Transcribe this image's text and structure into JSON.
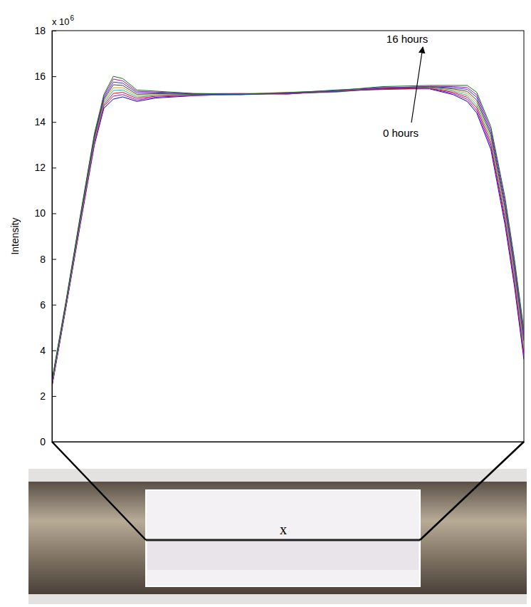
{
  "chart_data": {
    "type": "line",
    "y_label": "Intensity",
    "y_exponent": {
      "base": "x 10",
      "power": "6"
    },
    "annotations": [
      {
        "text": "16 hours"
      },
      {
        "text": "0 hours"
      }
    ],
    "x": [
      0,
      3,
      6,
      9,
      11,
      13,
      15,
      18,
      22,
      30,
      40,
      50,
      60,
      70,
      80,
      85,
      88,
      90,
      93,
      96,
      98,
      100
    ],
    "xlim": [
      0,
      100
    ],
    "ylim": [
      0,
      18
    ],
    "yticks": [
      0,
      2,
      4,
      6,
      8,
      10,
      12,
      14,
      16,
      18
    ],
    "grid": false,
    "tick_labels": "y",
    "series": [
      {
        "color": "#0000ff",
        "values": [
          2.4,
          5.9,
          9.5,
          13,
          14.6,
          15,
          15.1,
          14.9,
          15.05,
          15.15,
          15.22,
          15.25,
          15.35,
          15.45,
          15.45,
          15.2,
          14.9,
          14.4,
          12.8,
          9.5,
          6.8,
          3.6
        ]
      },
      {
        "color": "#bf00bf",
        "values": [
          2.44,
          5.94,
          9.55,
          13.06,
          14.68,
          15.13,
          15.2,
          14.96,
          15.09,
          15.16,
          15.2,
          15.28,
          15.32,
          15.5,
          15.47,
          15.25,
          14.99,
          14.51,
          12.93,
          9.65,
          6.95,
          3.76
        ]
      },
      {
        "color": "#ff0000",
        "values": [
          2.48,
          5.98,
          9.6,
          13.13,
          14.75,
          15.25,
          15.3,
          15.03,
          15.13,
          15.18,
          15.24,
          15.22,
          15.38,
          15.42,
          15.48,
          15.3,
          15.08,
          14.63,
          13.05,
          9.8,
          7.1,
          3.93
        ]
      },
      {
        "color": "#00bfbf",
        "values": [
          2.51,
          6.01,
          9.65,
          13.19,
          14.83,
          15.38,
          15.4,
          15.09,
          15.16,
          15.19,
          15.19,
          15.26,
          15.3,
          15.48,
          15.5,
          15.35,
          15.16,
          14.74,
          13.18,
          9.95,
          7.25,
          4.09
        ]
      },
      {
        "color": "#d4a017",
        "values": [
          2.55,
          6.05,
          9.7,
          13.25,
          14.9,
          15.5,
          15.5,
          15.15,
          15.2,
          15.2,
          15.23,
          15.3,
          15.36,
          15.52,
          15.51,
          15.4,
          15.25,
          14.85,
          13.3,
          10.1,
          7.4,
          4.25
        ]
      },
      {
        "color": "#404040",
        "values": [
          2.59,
          6.09,
          9.75,
          13.31,
          14.98,
          15.63,
          15.6,
          15.21,
          15.24,
          15.21,
          15.21,
          15.24,
          15.33,
          15.44,
          15.53,
          15.45,
          15.34,
          14.96,
          13.43,
          10.25,
          7.55,
          4.41
        ]
      },
      {
        "color": "#3030ff",
        "values": [
          2.63,
          6.13,
          9.8,
          13.38,
          15.05,
          15.75,
          15.7,
          15.28,
          15.28,
          15.23,
          15.2,
          15.27,
          15.4,
          15.5,
          15.55,
          15.5,
          15.43,
          15.08,
          13.55,
          10.4,
          7.7,
          4.58
        ]
      },
      {
        "color": "#bf00bf",
        "values": [
          2.66,
          6.16,
          9.85,
          13.44,
          15.13,
          15.88,
          15.8,
          15.34,
          15.31,
          15.24,
          15.25,
          15.23,
          15.34,
          15.47,
          15.56,
          15.55,
          15.51,
          15.19,
          13.68,
          10.55,
          7.85,
          4.74
        ]
      },
      {
        "color": "#008000",
        "values": [
          2.7,
          6.2,
          9.9,
          13.5,
          15.2,
          16,
          15.9,
          15.4,
          15.35,
          15.25,
          15.22,
          15.29,
          15.37,
          15.55,
          15.6,
          15.6,
          15.6,
          15.3,
          13.8,
          10.7,
          8,
          4.9
        ]
      }
    ]
  },
  "photo": {
    "label": "x"
  }
}
